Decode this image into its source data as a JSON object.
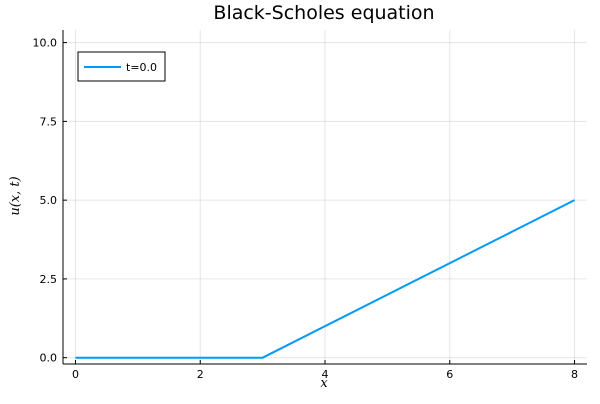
{
  "chart_data": {
    "type": "line",
    "title": "Black-Scholes equation",
    "xlabel": "x",
    "ylabel": "u(x, t)",
    "xlim": [
      -0.2,
      8.2
    ],
    "ylim": [
      -0.2,
      10.4
    ],
    "xticks": [
      0,
      2,
      4,
      6,
      8
    ],
    "xtick_labels": [
      "0",
      "2",
      "4",
      "6",
      "8"
    ],
    "yticks": [
      0.0,
      2.5,
      5.0,
      7.5,
      10.0
    ],
    "ytick_labels": [
      "0.0",
      "2.5",
      "5.0",
      "7.5",
      "10.0"
    ],
    "grid": true,
    "legend_position": "top-left",
    "series": [
      {
        "name": "t=0.0",
        "color": "#009AF9",
        "x": [
          0,
          3,
          8
        ],
        "y": [
          0,
          0,
          5
        ]
      }
    ]
  }
}
